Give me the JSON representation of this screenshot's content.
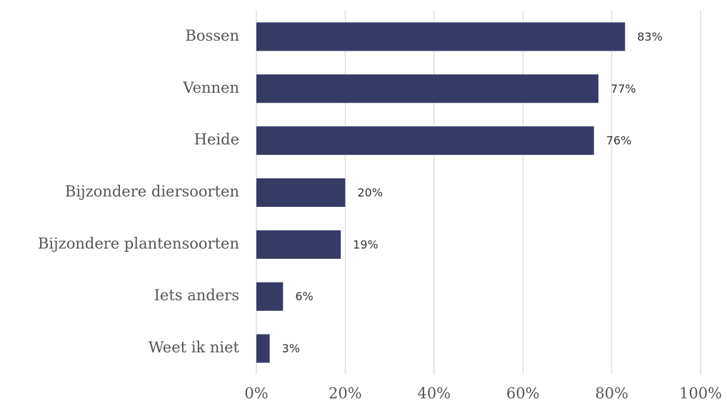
{
  "chart_data": {
    "type": "bar",
    "orientation": "horizontal",
    "categories": [
      "Bossen",
      "Vennen",
      "Heide",
      "Bijzondere diersoorten",
      "Bijzondere plantensoorten",
      "Iets anders",
      "Weet ik niet"
    ],
    "values": [
      83,
      77,
      76,
      20,
      19,
      6,
      3
    ],
    "value_labels": [
      "83%",
      "77%",
      "76%",
      "20%",
      "19%",
      "6%",
      "3%"
    ],
    "color": "#363b66",
    "xlim": [
      0,
      100
    ],
    "xticks": [
      {
        "value": 0,
        "label": "0%"
      },
      {
        "value": 20,
        "label": "20%"
      },
      {
        "value": 40,
        "label": "40%"
      },
      {
        "value": 60,
        "label": "60%"
      },
      {
        "value": 80,
        "label": "80%"
      },
      {
        "value": 100,
        "label": "100%"
      }
    ],
    "grid": true
  }
}
